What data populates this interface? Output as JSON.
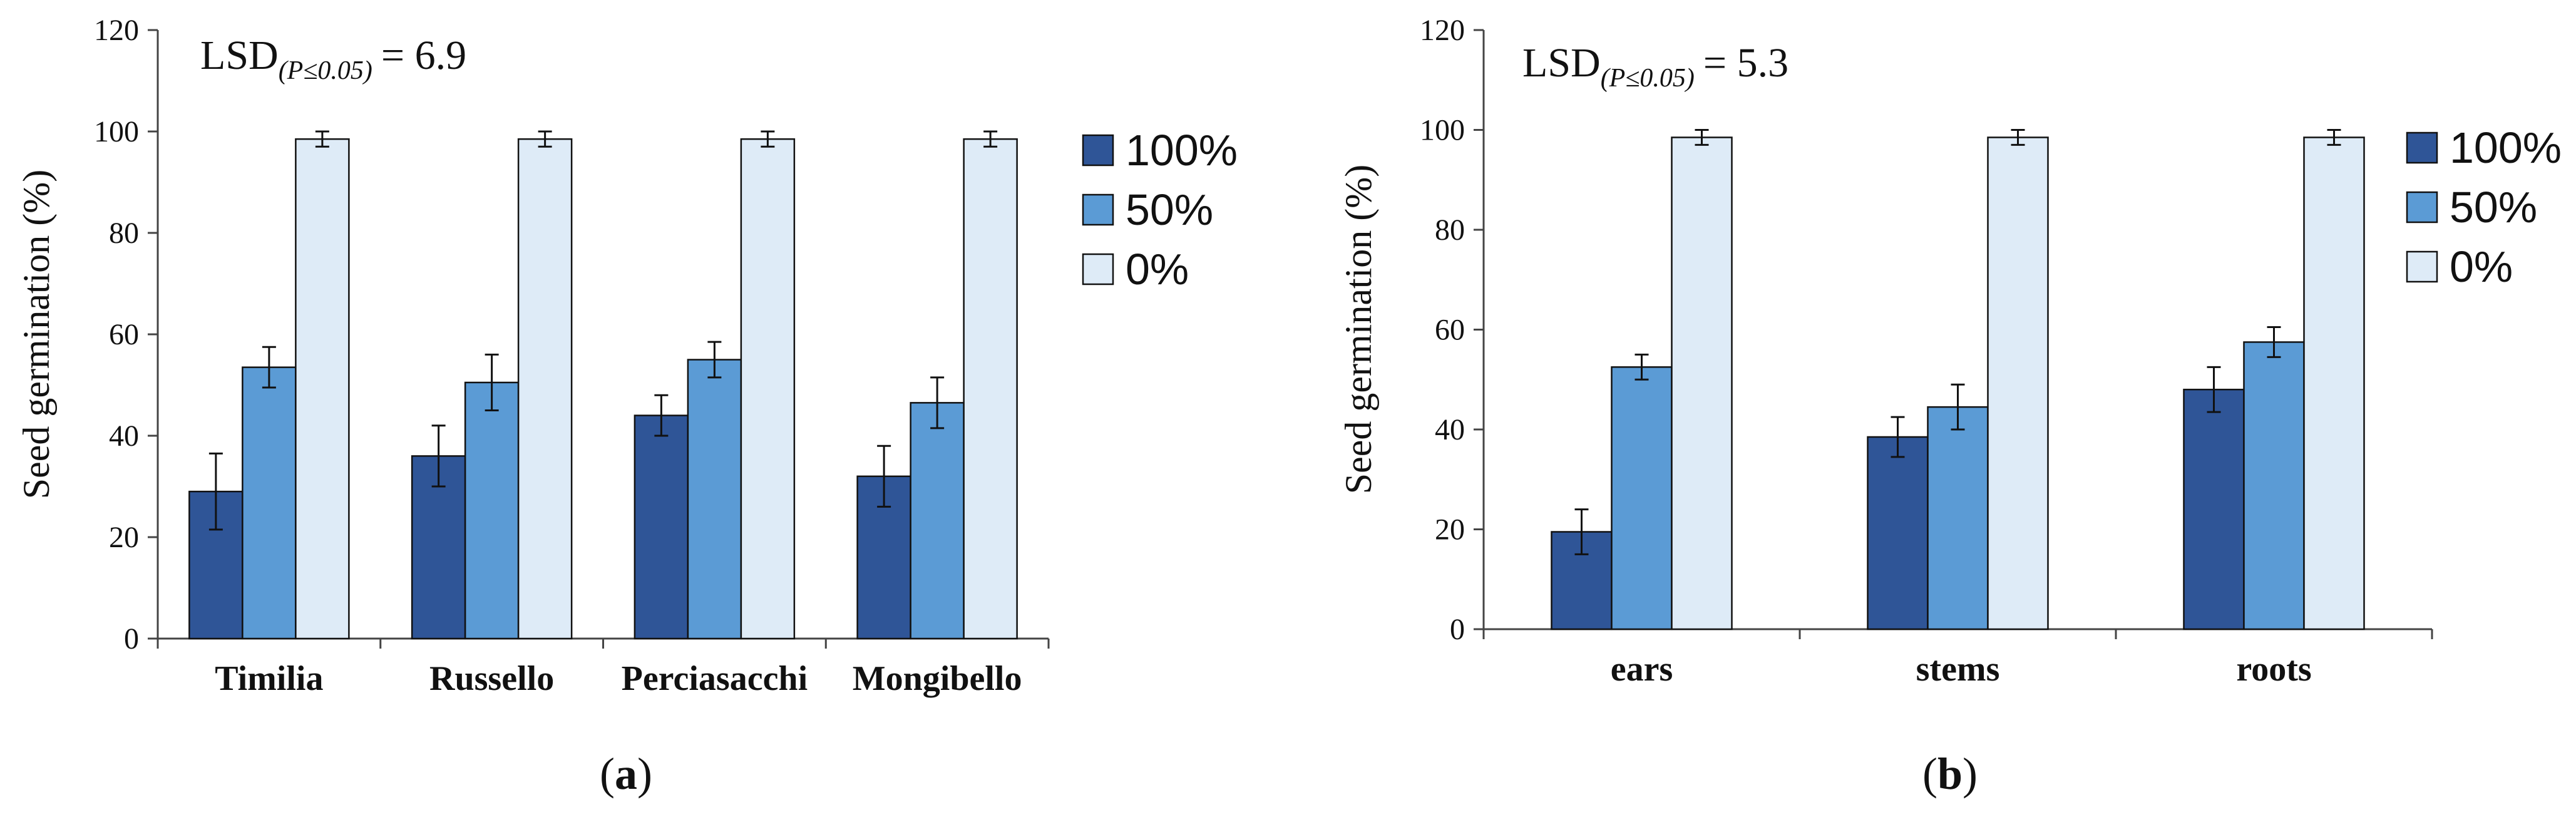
{
  "chart_data": [
    {
      "type": "bar",
      "panel_label": "a",
      "lsd_main": "LSD",
      "lsd_subscript": "(P≤0.05)",
      "lsd_value": "= 6.9",
      "ylabel": "Seed germination (%)",
      "xlabel": "",
      "ylim": [
        0,
        120
      ],
      "yticks": [
        0,
        20,
        40,
        60,
        80,
        100,
        120
      ],
      "categories": [
        "Timilia",
        "Russello",
        "Perciasacchi",
        "Mongibello"
      ],
      "series": [
        {
          "name": "100%",
          "color": "#2F5597",
          "values": [
            29,
            36,
            44,
            32
          ],
          "errors": [
            7.5,
            6,
            4,
            6
          ]
        },
        {
          "name": "50%",
          "color": "#5B9BD5",
          "values": [
            53.5,
            50.5,
            55,
            46.5
          ],
          "errors": [
            4,
            5.5,
            3.5,
            5
          ]
        },
        {
          "name": "0%",
          "color": "#DEEBF7",
          "values": [
            98.5,
            98.5,
            98.5,
            98.5
          ],
          "errors": [
            1.5,
            1.5,
            1.5,
            1.5
          ]
        }
      ],
      "legend": "right"
    },
    {
      "type": "bar",
      "panel_label": "b",
      "lsd_main": "LSD",
      "lsd_subscript": "(P≤0.05)",
      "lsd_value": "= 5.3",
      "ylabel": "Seed germination (%)",
      "xlabel": "",
      "ylim": [
        0,
        120
      ],
      "yticks": [
        0,
        20,
        40,
        60,
        80,
        100,
        120
      ],
      "categories": [
        "ears",
        "stems",
        "roots"
      ],
      "series": [
        {
          "name": "100%",
          "color": "#2F5597",
          "values": [
            19.5,
            38.5,
            48
          ],
          "errors": [
            4.5,
            4,
            4.5
          ]
        },
        {
          "name": "50%",
          "color": "#5B9BD5",
          "values": [
            52.5,
            44.5,
            57.5
          ],
          "errors": [
            2.5,
            4.5,
            3
          ]
        },
        {
          "name": "0%",
          "color": "#DEEBF7",
          "values": [
            98.5,
            98.5,
            98.5
          ],
          "errors": [
            1.5,
            1.5,
            1.5
          ]
        }
      ],
      "legend": "right"
    }
  ]
}
